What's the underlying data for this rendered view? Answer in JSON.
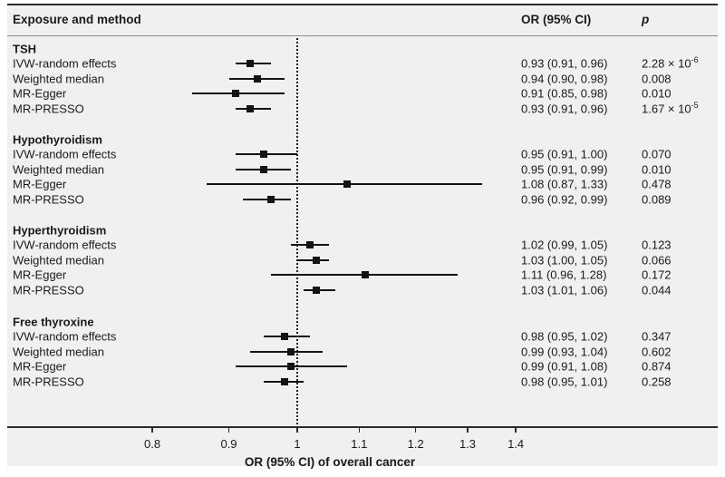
{
  "colors": {
    "figure_background": "#f0f0f0",
    "page_background": "#ffffff",
    "ink": "#1a1a1a",
    "border": "#2b2b2b",
    "header_separator": "#8c8c8c"
  },
  "header": {
    "exposure": "Exposure and method",
    "or": "OR (95% CI)",
    "p": "p"
  },
  "axis": {
    "title": "OR (95% CI) of overall cancer",
    "ticks": [
      0.8,
      0.9,
      1,
      1.1,
      1.2,
      1.3,
      1.4
    ],
    "tick_labels": [
      "0.8",
      "0.9",
      "1",
      "1.1",
      "1.2",
      "1.3",
      "1.4"
    ],
    "reference_line": 1
  },
  "chart_data": {
    "type": "forest",
    "scale": "log10",
    "xlabel": "OR (95% CI) of overall cancer",
    "xlim": [
      0.72,
      1.47
    ],
    "reference_value": 1,
    "groups": [
      {
        "label": "TSH",
        "rows": [
          {
            "label": "IVW-random effects",
            "or": 0.93,
            "low": 0.91,
            "high": 0.96,
            "or_text": "0.93 (0.91, 0.96)",
            "p": "2.28 × 10",
            "p_exp": "-6"
          },
          {
            "label": "Weighted median",
            "or": 0.94,
            "low": 0.9,
            "high": 0.98,
            "or_text": "0.94 (0.90, 0.98)",
            "p": "0.008"
          },
          {
            "label": "MR-Egger",
            "or": 0.91,
            "low": 0.85,
            "high": 0.98,
            "or_text": "0.91 (0.85, 0.98)",
            "p": "0.010"
          },
          {
            "label": "MR-PRESSO",
            "or": 0.93,
            "low": 0.91,
            "high": 0.96,
            "or_text": "0.93 (0.91, 0.96)",
            "p": "1.67 × 10",
            "p_exp": "-5"
          }
        ]
      },
      {
        "label": "Hypothyroidism",
        "rows": [
          {
            "label": "IVW-random effects",
            "or": 0.95,
            "low": 0.91,
            "high": 1.0,
            "or_text": "0.95 (0.91, 1.00)",
            "p": "0.070"
          },
          {
            "label": "Weighted median",
            "or": 0.95,
            "low": 0.91,
            "high": 0.99,
            "or_text": "0.95 (0.91, 0.99)",
            "p": "0.010"
          },
          {
            "label": "MR-Egger",
            "or": 1.08,
            "low": 0.87,
            "high": 1.33,
            "or_text": "1.08 (0.87, 1.33)",
            "p": "0.478"
          },
          {
            "label": "MR-PRESSO",
            "or": 0.96,
            "low": 0.92,
            "high": 0.99,
            "or_text": "0.96 (0.92, 0.99)",
            "p": "0.089"
          }
        ]
      },
      {
        "label": "Hyperthyroidism",
        "rows": [
          {
            "label": "IVW-random effects",
            "or": 1.02,
            "low": 0.99,
            "high": 1.05,
            "or_text": "1.02 (0.99, 1.05)",
            "p": "0.123"
          },
          {
            "label": "Weighted median",
            "or": 1.03,
            "low": 1.0,
            "high": 1.05,
            "or_text": "1.03 (1.00, 1.05)",
            "p": "0.066"
          },
          {
            "label": "MR-Egger",
            "or": 1.11,
            "low": 0.96,
            "high": 1.28,
            "or_text": "1.11 (0.96, 1.28)",
            "p": "0.172"
          },
          {
            "label": "MR-PRESSO",
            "or": 1.03,
            "low": 1.01,
            "high": 1.06,
            "or_text": "1.03 (1.01, 1.06)",
            "p": "0.044"
          }
        ]
      },
      {
        "label": "Free thyroxine",
        "rows": [
          {
            "label": "IVW-random effects",
            "or": 0.98,
            "low": 0.95,
            "high": 1.02,
            "or_text": "0.98 (0.95, 1.02)",
            "p": "0.347"
          },
          {
            "label": "Weighted median",
            "or": 0.99,
            "low": 0.93,
            "high": 1.04,
            "or_text": "0.99 (0.93, 1.04)",
            "p": "0.602"
          },
          {
            "label": "MR-Egger",
            "or": 0.99,
            "low": 0.91,
            "high": 1.08,
            "or_text": "0.99 (0.91, 1.08)",
            "p": "0.874"
          },
          {
            "label": "MR-PRESSO",
            "or": 0.98,
            "low": 0.95,
            "high": 1.01,
            "or_text": "0.98 (0.95, 1.01)",
            "p": "0.258"
          }
        ]
      }
    ]
  }
}
